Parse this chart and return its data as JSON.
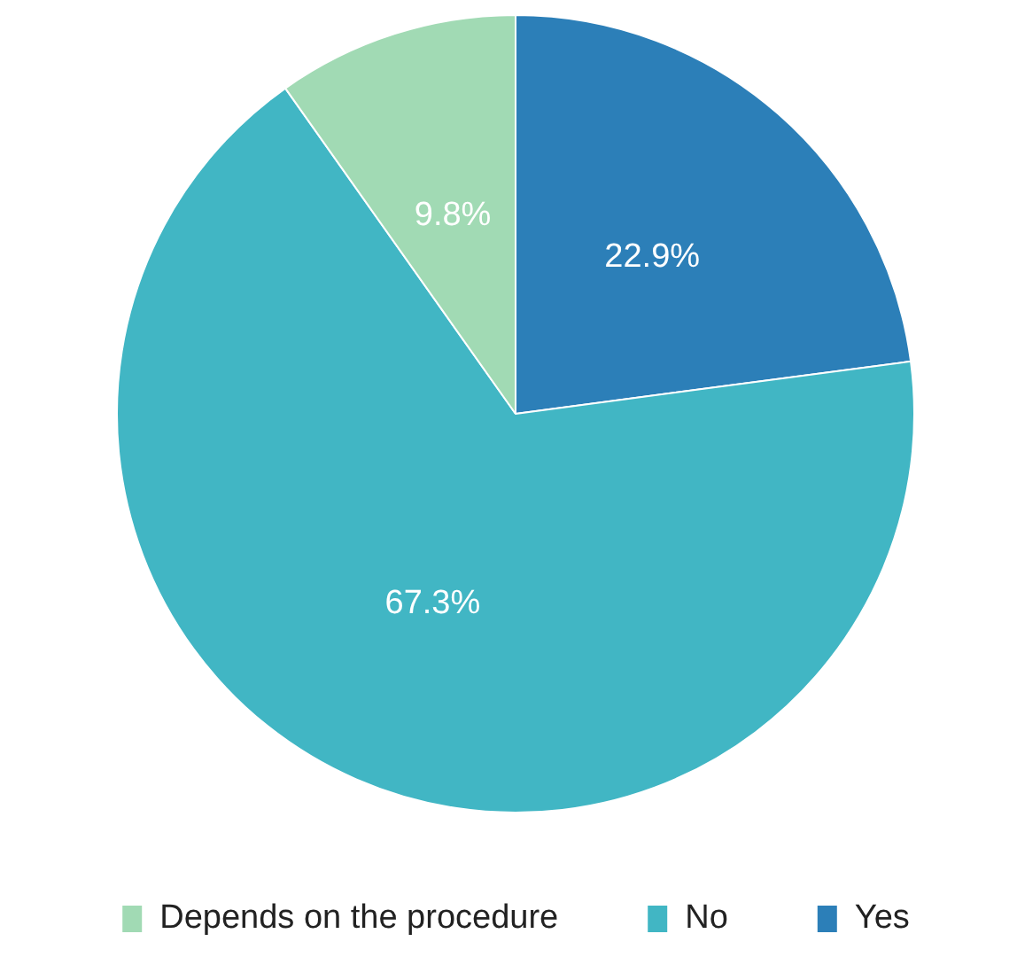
{
  "chart_data": {
    "type": "pie",
    "categories": [
      "Depends on the procedure",
      "No",
      "Yes"
    ],
    "values": [
      9.8,
      67.3,
      22.9
    ],
    "colors": [
      "#a1dab4",
      "#41b6c4",
      "#2c7fb8"
    ],
    "value_labels": [
      "9.8%",
      "67.3%",
      "22.9%"
    ],
    "legend": "bottom"
  }
}
